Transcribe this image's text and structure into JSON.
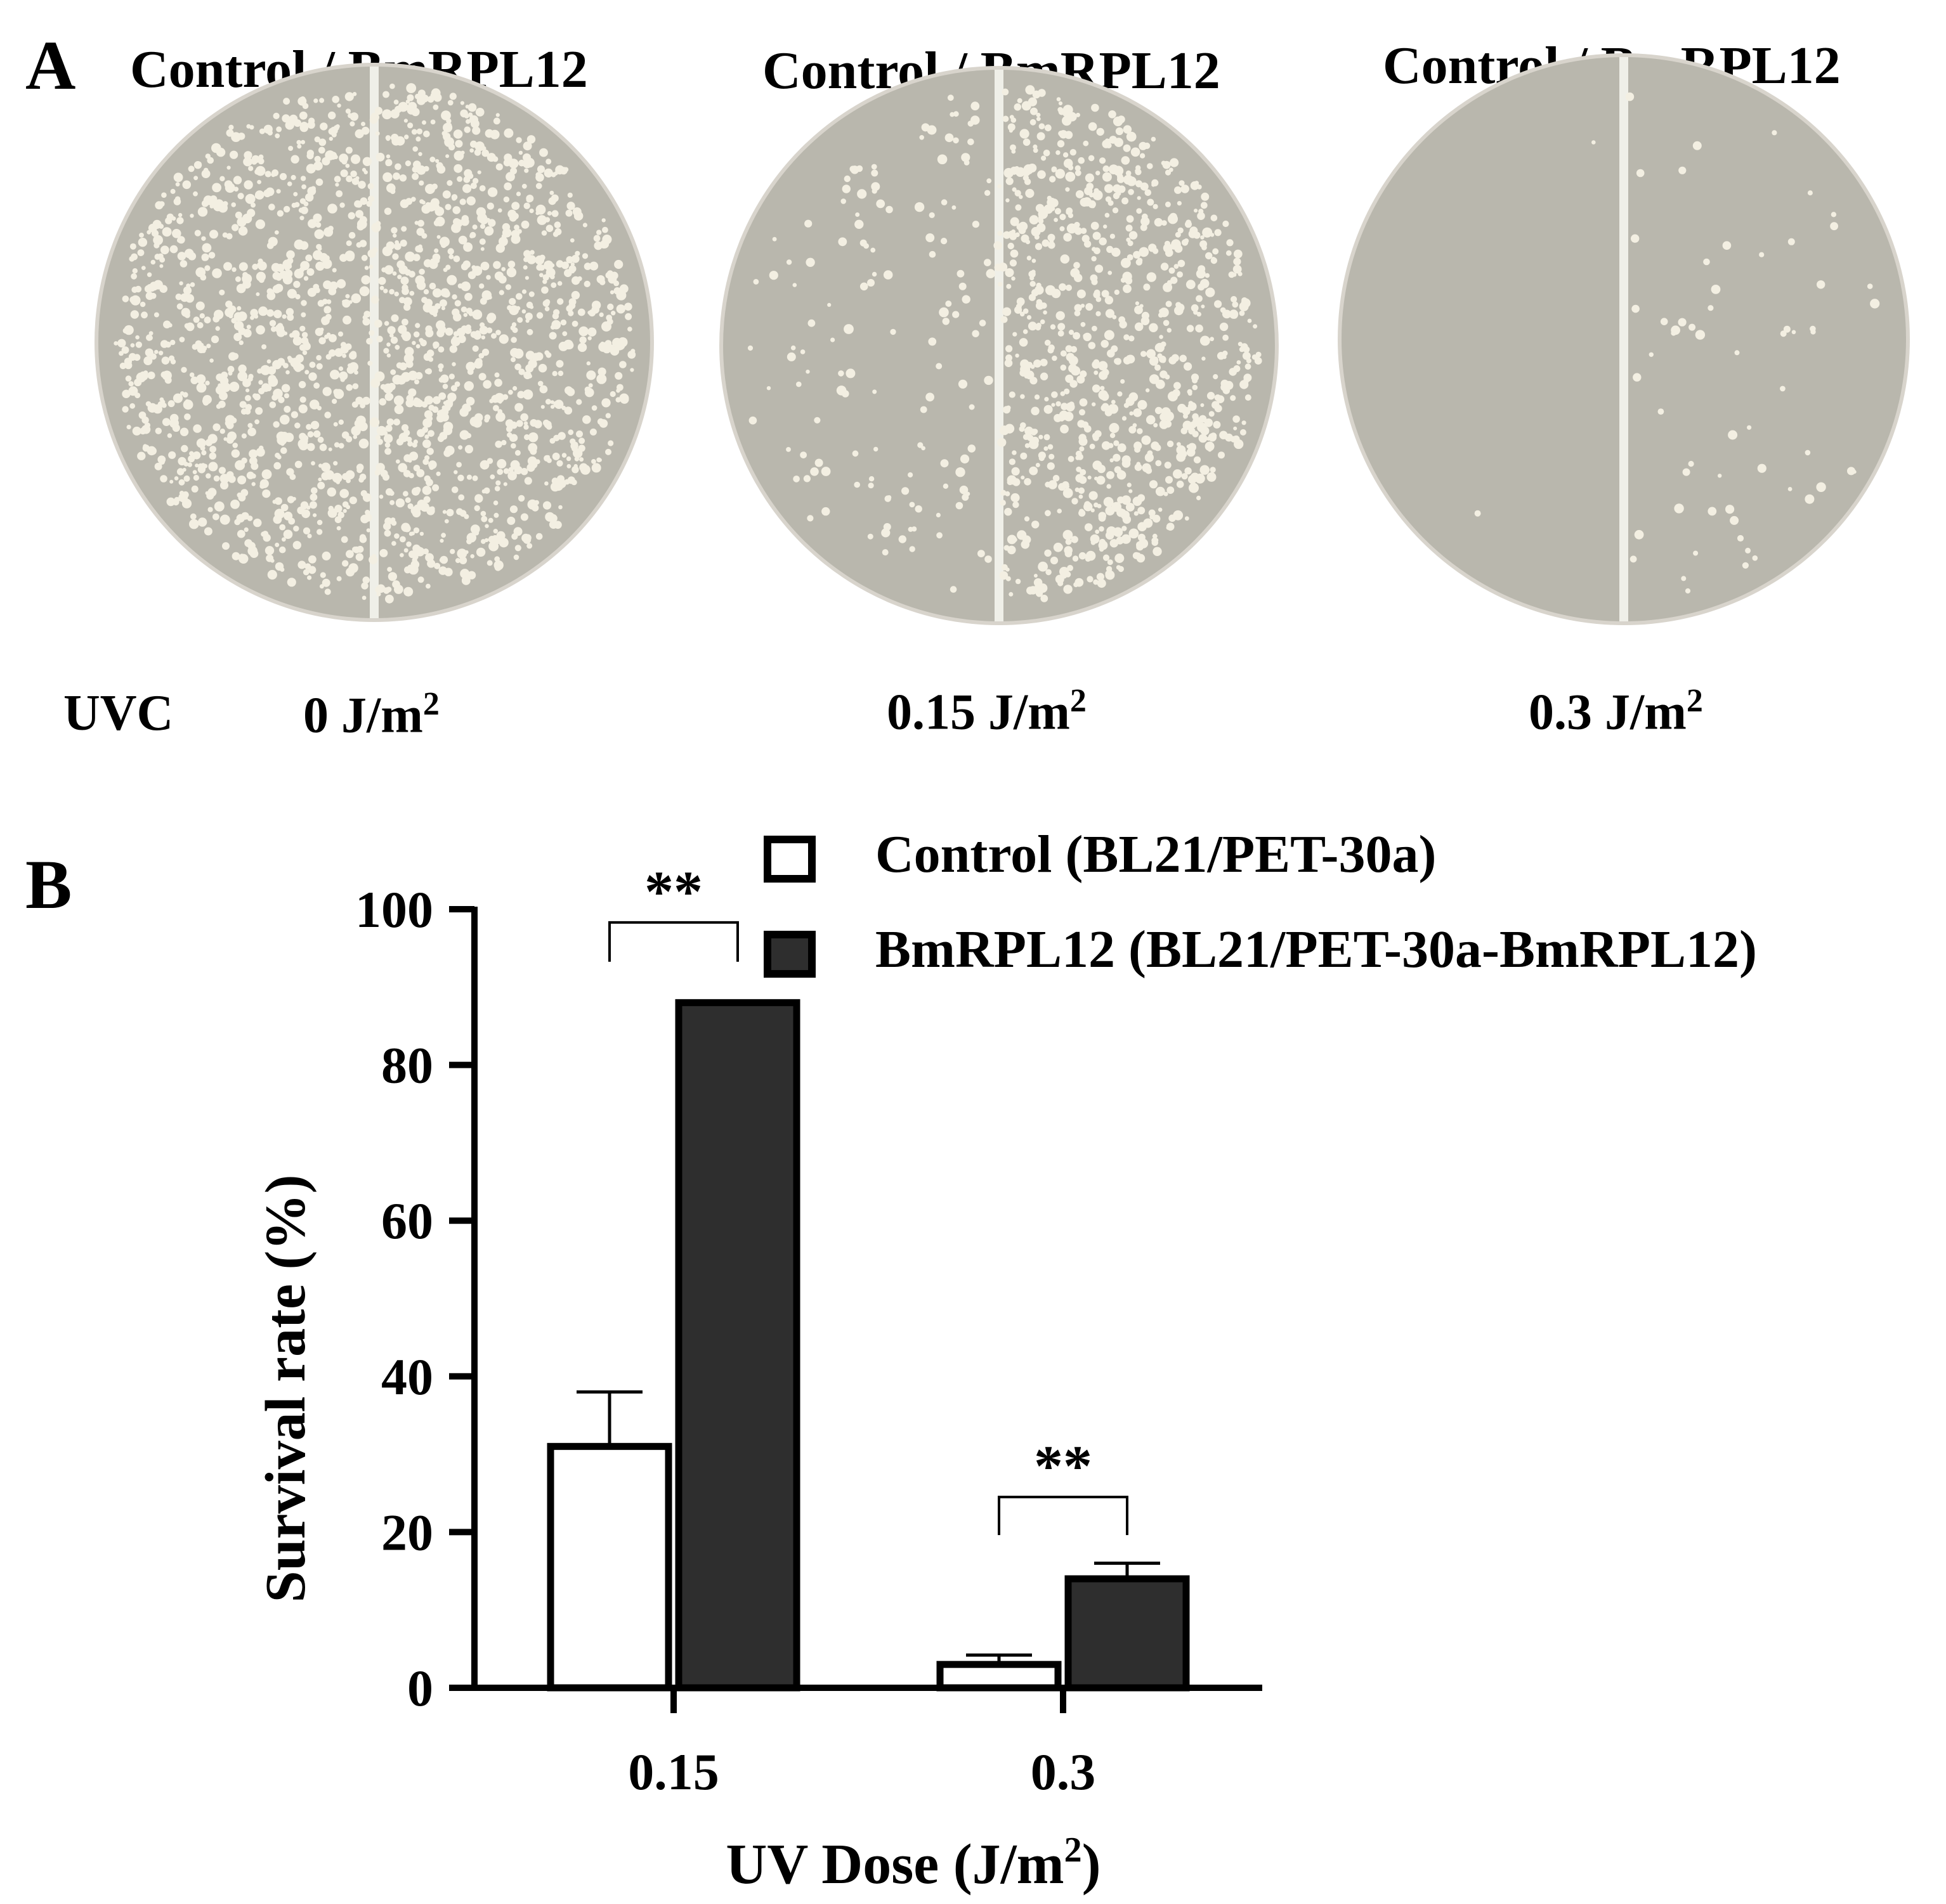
{
  "panel_a": {
    "letter": "A",
    "uvc_label": "UVC",
    "plates": [
      {
        "title": "Control / BmRPL12",
        "dose": "0 J/m",
        "dose_sup": "2",
        "control_colonies": 900,
        "bmrpl12_colonies": 1000
      },
      {
        "title": "Control / BmRPL12",
        "dose": "0.15 J/m",
        "dose_sup": "2",
        "control_colonies": 140,
        "bmrpl12_colonies": 900
      },
      {
        "title": "Control / BmRPL12",
        "dose": "0.3 J/m",
        "dose_sup": "2",
        "control_colonies": 2,
        "bmrpl12_colonies": 60
      }
    ]
  },
  "panel_b": {
    "letter": "B"
  },
  "colors": {
    "control_fill": "#ffffff",
    "bmrpl12_fill": "#2e2e2e",
    "axis": "#000000",
    "agar": "#b9b7ad",
    "colony": "#f3efe2"
  },
  "chart_data": {
    "type": "bar",
    "categories": [
      "0.15",
      "0.3"
    ],
    "series": [
      {
        "name": "Control (BL21/PET-30a)",
        "values": [
          31,
          3
        ],
        "errors": [
          7,
          1.2
        ]
      },
      {
        "name": "BmRPL12 (BL21/PET-30a-BmRPL12)",
        "values": [
          88,
          14
        ],
        "errors": [
          0,
          2
        ]
      }
    ],
    "ylabel": "Survival rate (%)",
    "xlabel": "UV Dose (J/m",
    "xlabel_sup": "2",
    "xlabel_end": ")",
    "ylim": [
      0,
      100
    ],
    "yticks": [
      "0",
      "20",
      "40",
      "60",
      "80",
      "100"
    ],
    "significance": [
      {
        "category": "0.15",
        "label": "**"
      },
      {
        "category": "0.3",
        "label": "**"
      }
    ],
    "legend_position": "top-right"
  }
}
